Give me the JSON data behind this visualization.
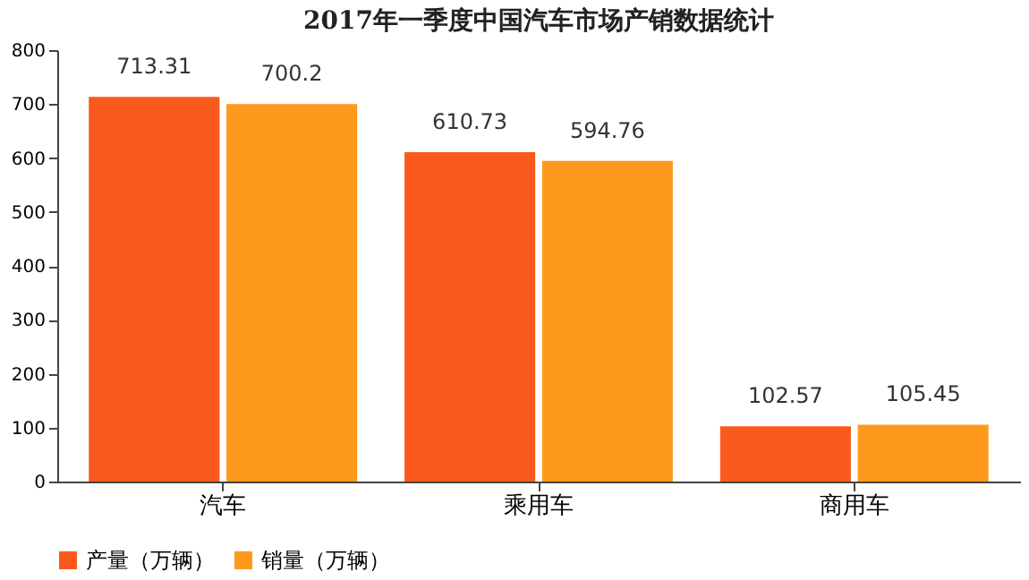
{
  "chart_data": {
    "type": "bar",
    "title": "2017年一季度中国汽车市场产销数据统计",
    "categories": [
      "汽车",
      "乘用车",
      "商用车"
    ],
    "series": [
      {
        "name": "产量（万辆）",
        "color": "#fa5a1e",
        "values": [
          713.31,
          610.73,
          102.57
        ]
      },
      {
        "name": "销量（万辆）",
        "color": "#fd9a1e",
        "values": [
          700.2,
          594.76,
          105.45
        ]
      }
    ],
    "ylim": [
      0,
      800
    ],
    "yticks": [
      0,
      100,
      200,
      300,
      400,
      500,
      600,
      700,
      800
    ],
    "grid": false,
    "legend": "bottom",
    "data_labels": true
  }
}
